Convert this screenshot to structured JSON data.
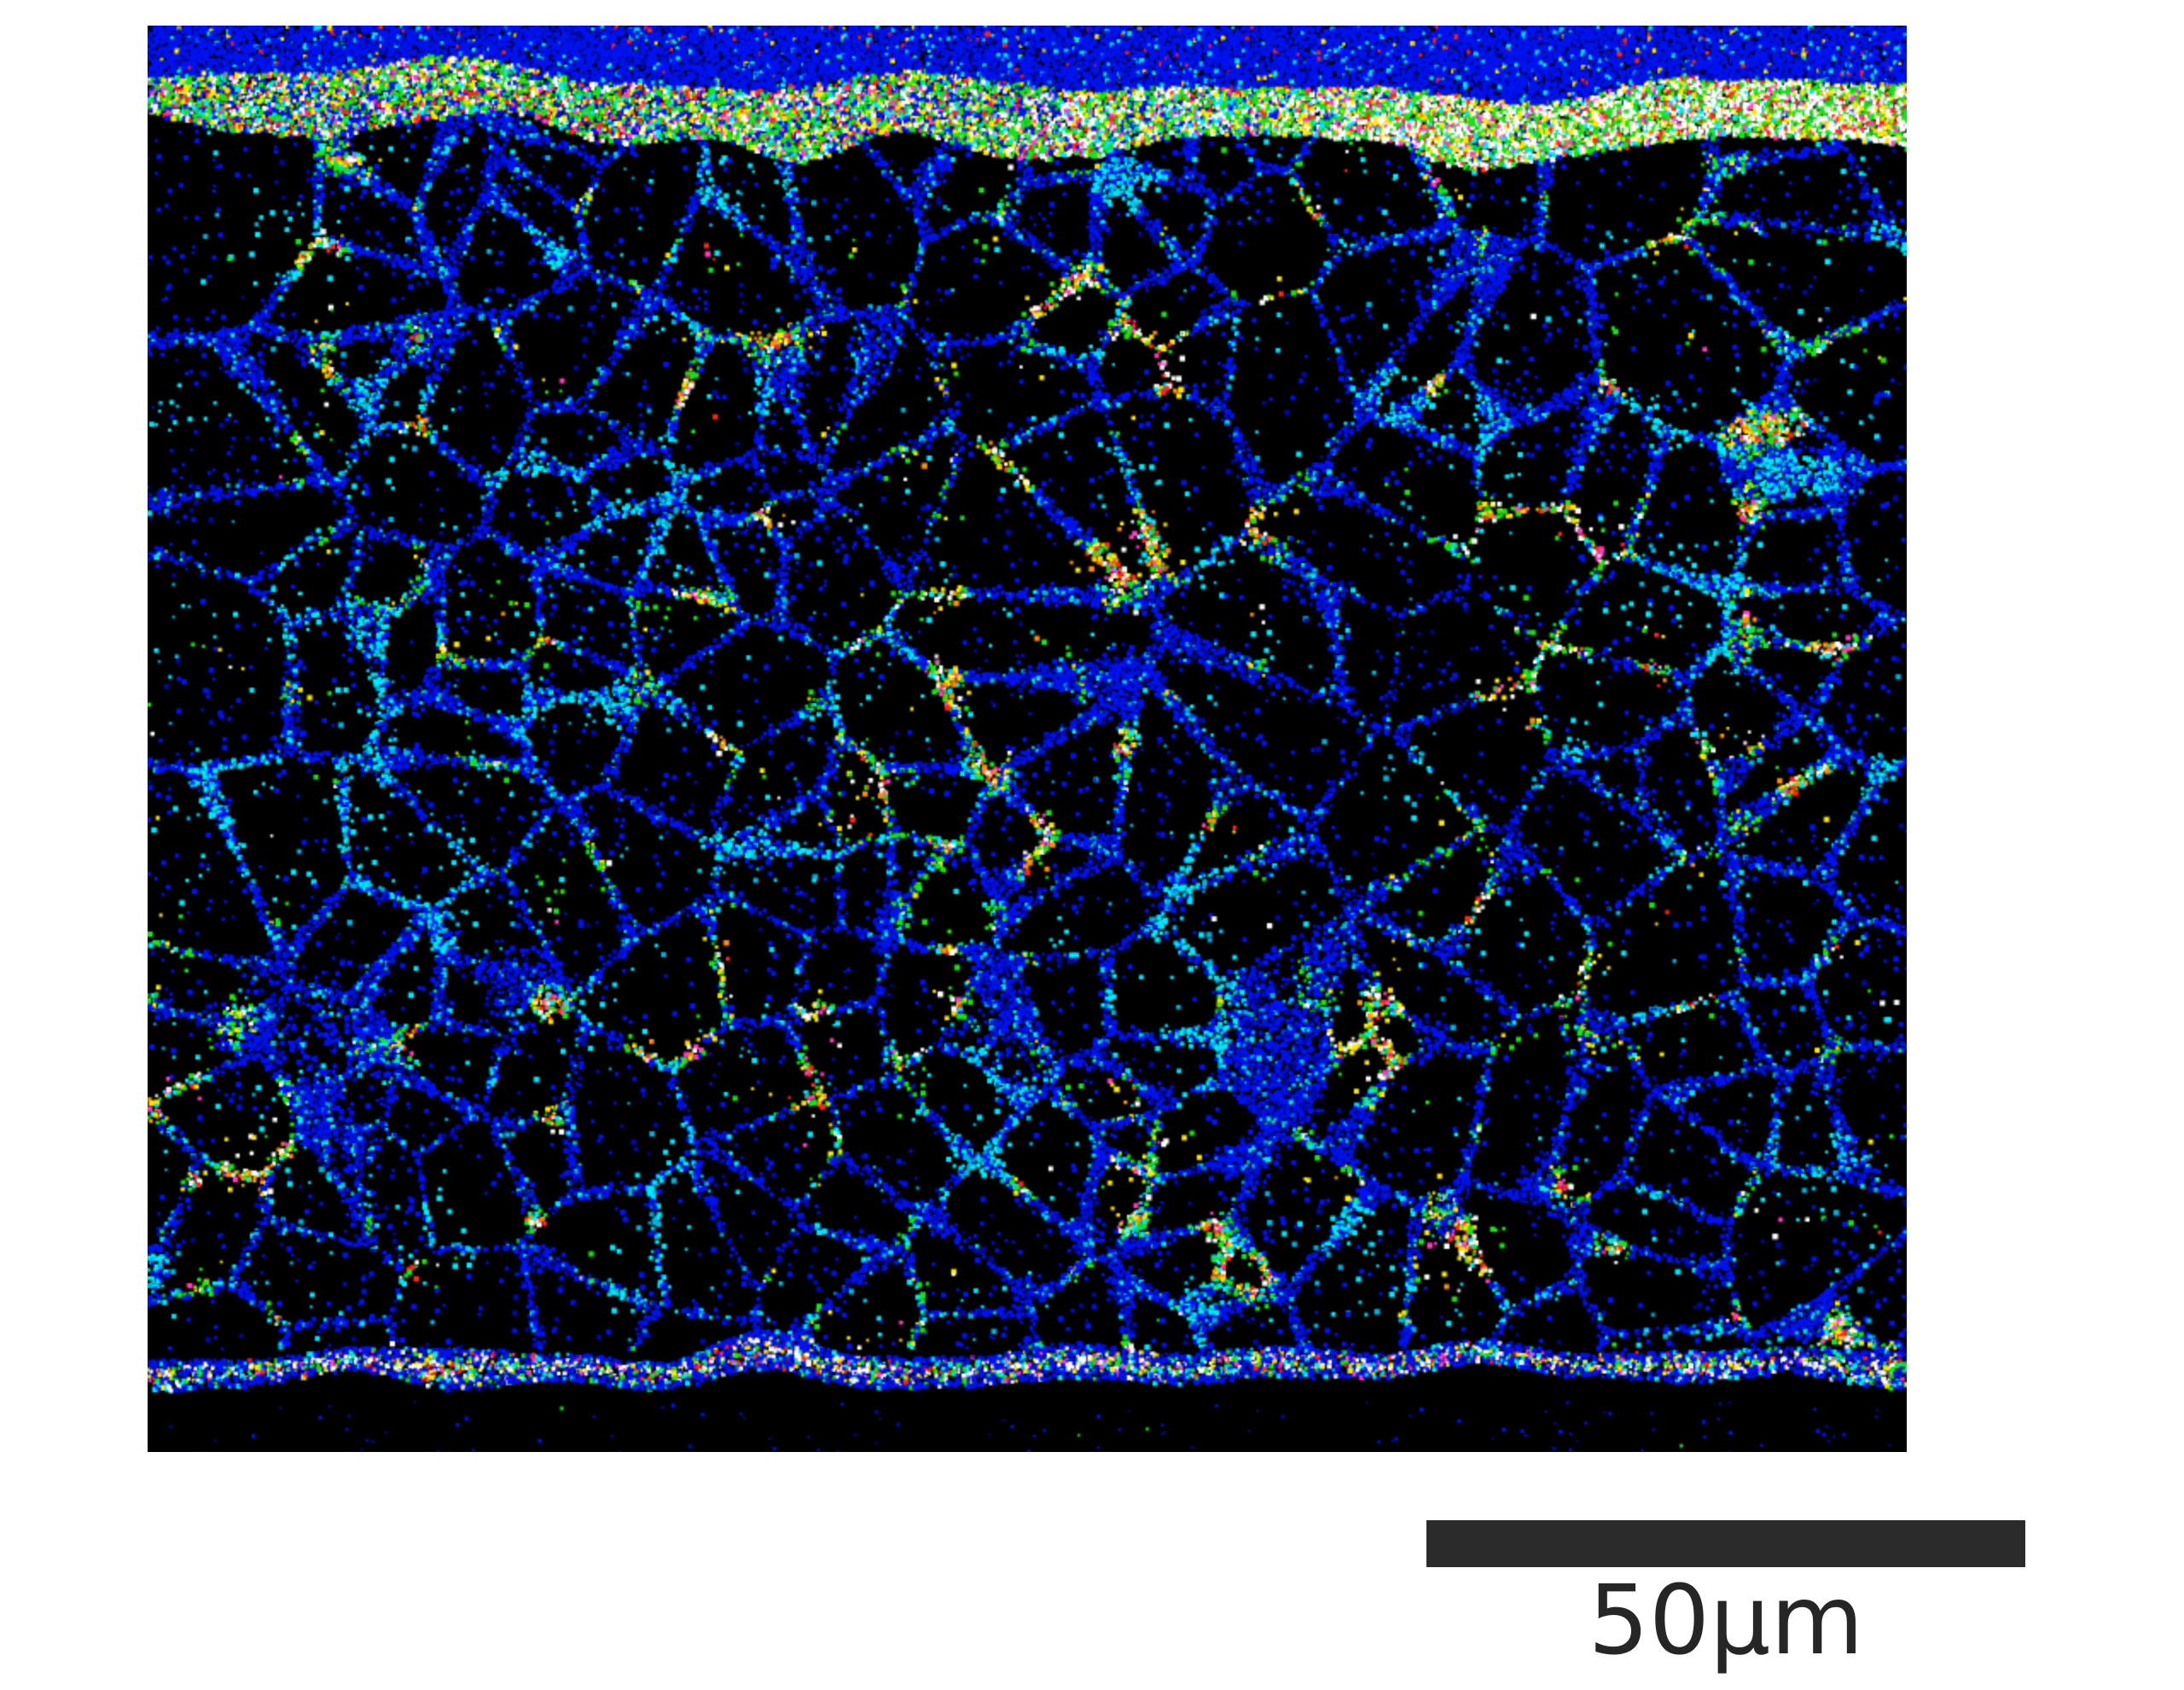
{
  "figure": {
    "page_background": "#ffffff",
    "micrograph": {
      "background": "#000000",
      "palette": {
        "blue": "#0013f0",
        "deep_blue": "#0009a6",
        "cyan": "#00e8ff",
        "teal": "#00b0e0",
        "green": "#1ae11a",
        "yellow": "#fde800",
        "orange": "#ff9100",
        "red": "#ff2619",
        "magenta": "#ff3ec0",
        "white": "#ffffff"
      },
      "regions": [
        "top-blue-band",
        "bright-surface-layer",
        "porous-speckle-body",
        "bright-interface-line",
        "dark-substrate"
      ]
    },
    "scale_bar": {
      "label": "50µm",
      "bar_color": "#2b2b2b",
      "label_color": "#262626"
    }
  }
}
